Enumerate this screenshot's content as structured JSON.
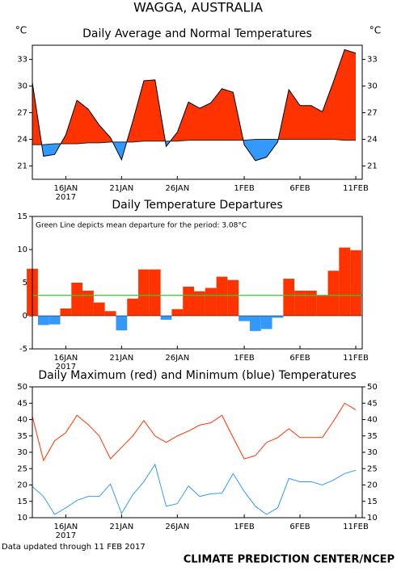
{
  "page": {
    "title": "WAGGA, AUSTRALIA",
    "footer_note": "Data updated through 11 FEB 2017",
    "footer_credit": "CLIMATE PREDICTION CENTER/NCEP"
  },
  "chart_data": [
    {
      "type": "area",
      "title": "Daily Average and Normal Temperatures",
      "ylabel": "°C",
      "categories": [
        null,
        null,
        null,
        "16JAN",
        null,
        null,
        null,
        null,
        "21JAN",
        null,
        null,
        null,
        null,
        "26JAN",
        null,
        null,
        null,
        null,
        null,
        "1FEB",
        null,
        null,
        null,
        null,
        "6FEB",
        null,
        null,
        null,
        null,
        "11FEB"
      ],
      "year_label": "2017",
      "series": [
        {
          "name": "Average",
          "color": "#000000",
          "values": [
            30.4,
            22.1,
            22.3,
            24.5,
            28.4,
            27.4,
            25.6,
            24.2,
            21.7,
            26.0,
            30.6,
            30.7,
            23.2,
            24.8,
            28.2,
            27.5,
            28.1,
            29.7,
            29.3,
            23.4,
            21.6,
            22.0,
            23.7,
            29.6,
            27.8,
            27.8,
            27.1,
            30.5,
            34.1,
            33.7
          ]
        },
        {
          "name": "Normal",
          "color": "#222222",
          "values": [
            23.4,
            23.4,
            23.5,
            23.5,
            23.5,
            23.6,
            23.6,
            23.7,
            23.7,
            23.7,
            23.8,
            23.8,
            23.8,
            23.8,
            23.9,
            23.9,
            23.9,
            23.9,
            23.9,
            23.9,
            24.0,
            24.0,
            24.0,
            24.0,
            24.0,
            24.0,
            24.0,
            24.0,
            23.9,
            23.9
          ]
        }
      ],
      "above_color": "#ff3300",
      "below_color": "#3399ff",
      "ylim": [
        19.5,
        34.6
      ],
      "yticks": [
        21,
        24,
        27,
        30,
        33
      ],
      "right_axis": true
    },
    {
      "type": "bar",
      "title": "Daily Temperature Departures",
      "annotation": "Green Line depicts mean departure for the period: 3.08°C",
      "categories": [
        null,
        null,
        null,
        "16JAN",
        null,
        null,
        null,
        null,
        "21JAN",
        null,
        null,
        null,
        null,
        "26JAN",
        null,
        null,
        null,
        null,
        null,
        "1FEB",
        null,
        null,
        null,
        null,
        "6FEB",
        null,
        null,
        null,
        null,
        "11FEB"
      ],
      "year_label": "2017",
      "values": [
        7.1,
        -1.4,
        -1.3,
        1.1,
        5.0,
        3.8,
        2.0,
        0.7,
        -2.2,
        2.6,
        7.0,
        7.0,
        -0.6,
        1.0,
        4.4,
        3.7,
        4.2,
        5.9,
        5.4,
        -0.8,
        -2.3,
        -2.0,
        -0.3,
        5.6,
        3.8,
        3.8,
        3.1,
        6.8,
        10.3,
        9.9
      ],
      "positive_color": "#ff3300",
      "negative_color": "#3399ff",
      "mean_departure": 3.08,
      "mean_color": "#33cc33",
      "ylim": [
        -5,
        15
      ],
      "yticks": [
        -5,
        0,
        5,
        10,
        15
      ],
      "right_axis": false
    },
    {
      "type": "line",
      "title": "Daily Maximum (red) and Minimum (blue) Temperatures",
      "categories": [
        null,
        null,
        null,
        "16JAN",
        null,
        null,
        null,
        null,
        "21JAN",
        null,
        null,
        null,
        null,
        "26JAN",
        null,
        null,
        null,
        null,
        null,
        "1FEB",
        null,
        null,
        null,
        null,
        "6FEB",
        null,
        null,
        null,
        null,
        "11FEB"
      ],
      "year_label": "2017",
      "series": [
        {
          "name": "Maximum",
          "color": "#ff3300",
          "values": [
            41,
            27.5,
            33.5,
            36,
            41.3,
            38.5,
            35,
            28,
            31.5,
            35,
            39.7,
            35,
            33,
            35,
            36.5,
            38.3,
            39,
            41.3,
            34.5,
            28,
            29,
            33,
            34.5,
            37.2,
            34.5,
            34.5,
            34.5,
            39.5,
            45,
            43
          ]
        },
        {
          "name": "Minimum",
          "color": "#3399ff",
          "values": [
            19.5,
            16.5,
            11,
            13,
            15.3,
            16.5,
            16.5,
            20.3,
            11.3,
            17,
            21,
            26.3,
            13.5,
            14.3,
            19.7,
            16.5,
            17.3,
            17.5,
            23.5,
            18,
            13.5,
            11,
            13,
            22,
            21,
            21,
            20,
            21.5,
            23.5,
            24.5
          ]
        }
      ],
      "ylim": [
        10,
        50
      ],
      "yticks": [
        10,
        15,
        20,
        25,
        30,
        35,
        40,
        45,
        50
      ],
      "right_axis": true
    }
  ]
}
